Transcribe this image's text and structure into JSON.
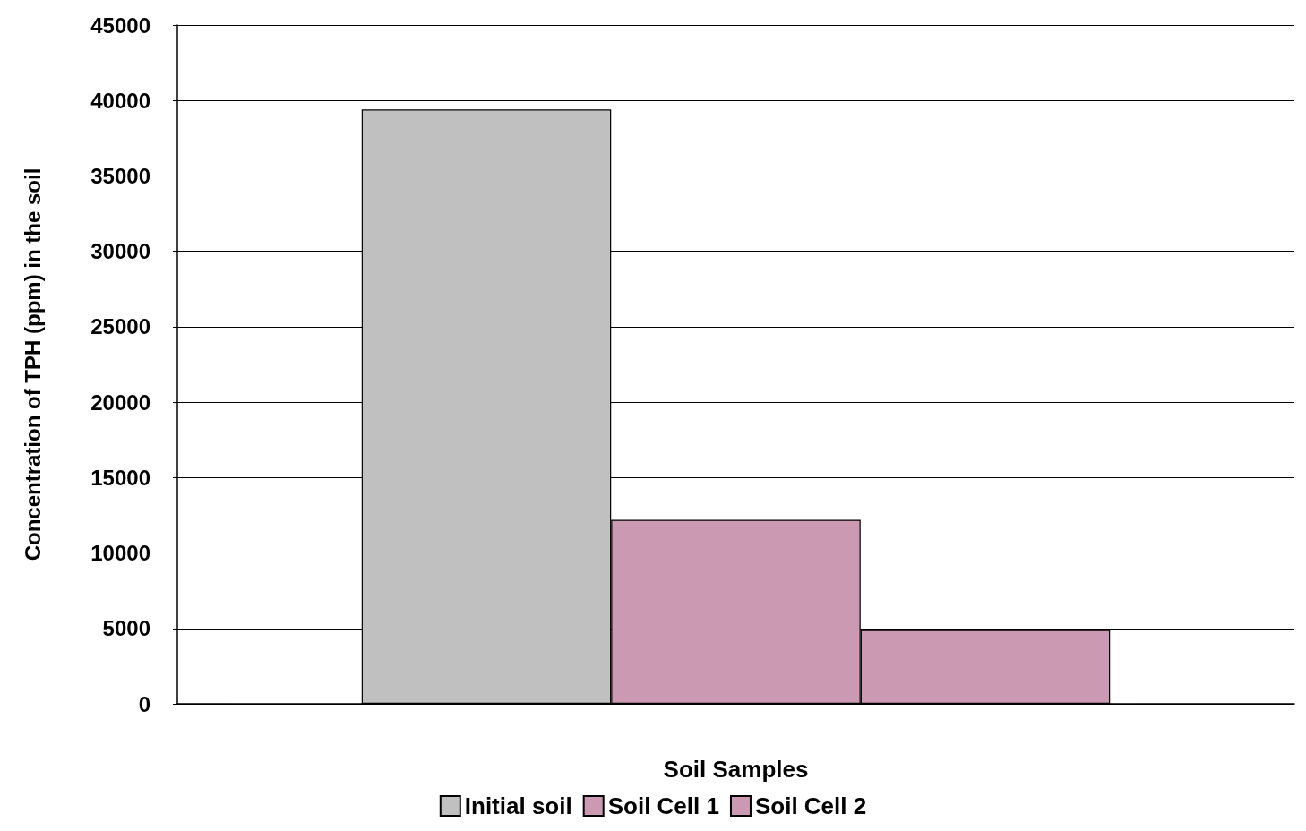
{
  "chart_data": {
    "type": "bar",
    "xlabel": "Soil Samples",
    "ylabel": "Concentration of TPH (ppm) in the soil",
    "categories": [
      null
    ],
    "series": [
      {
        "name": "Initial soil",
        "color": "#c0c0c0",
        "values": [
          39400
        ]
      },
      {
        "name": "Soil Cell 1",
        "color": "#cc99b3",
        "values": [
          12200
        ]
      },
      {
        "name": "Soil Cell 2",
        "color": "#cc99b3",
        "values": [
          4900
        ]
      }
    ],
    "ylim": [
      0,
      45000
    ],
    "yticks": [
      0,
      5000,
      10000,
      15000,
      20000,
      25000,
      30000,
      35000,
      40000,
      45000
    ],
    "grid": "y",
    "legend": "bottom"
  }
}
